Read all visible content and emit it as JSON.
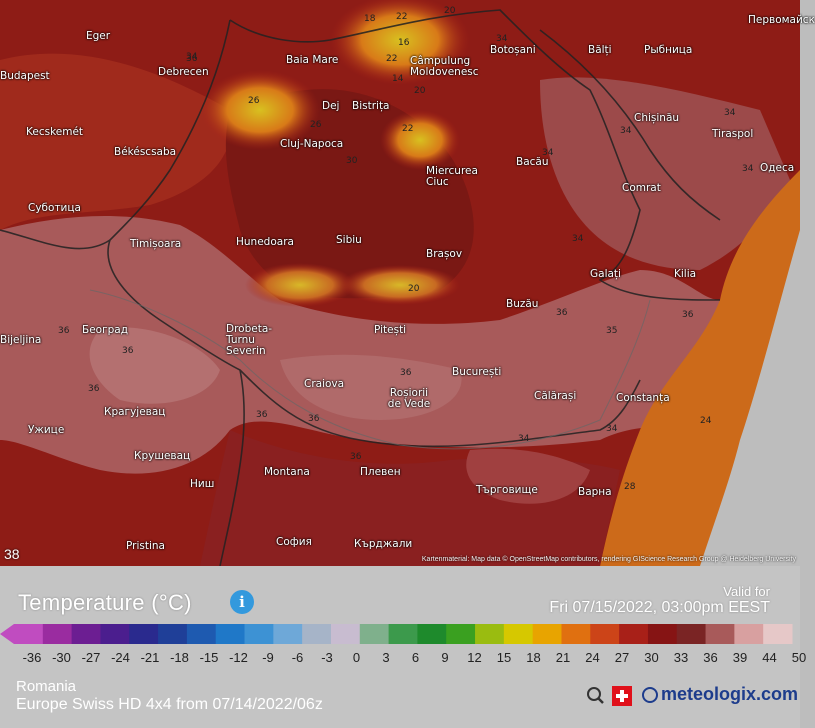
{
  "map": {
    "corner_value": "38",
    "attribution": "Kartenmaterial: Map data © OpenStreetMap contributors, rendering GIScience Research Group @ Heidelberg University",
    "cities": [
      {
        "name": "Eger"
      },
      {
        "name": "Budapest"
      },
      {
        "name": "Debrecen"
      },
      {
        "name": "Baia Mare"
      },
      {
        "name": "Câmpulung Moldovenesc"
      },
      {
        "name": "Botoșani"
      },
      {
        "name": "Bălți"
      },
      {
        "name": "Рыбница"
      },
      {
        "name": "Первомайск"
      },
      {
        "name": "Kecskemét"
      },
      {
        "name": "Dej"
      },
      {
        "name": "Bistrița"
      },
      {
        "name": "Chișinău"
      },
      {
        "name": "Tiraspol"
      },
      {
        "name": "Békéscsaba"
      },
      {
        "name": "Cluj-Napoca"
      },
      {
        "name": "Bacău"
      },
      {
        "name": "Miercurea Ciuc"
      },
      {
        "name": "Comrat"
      },
      {
        "name": "Одеса"
      },
      {
        "name": "Суботица"
      },
      {
        "name": "Timișoara"
      },
      {
        "name": "Hunedoara"
      },
      {
        "name": "Sibiu"
      },
      {
        "name": "Brașov"
      },
      {
        "name": "Galați"
      },
      {
        "name": "Kilia"
      },
      {
        "name": "Београд"
      },
      {
        "name": "Bijeljina"
      },
      {
        "name": "Drobeta-Turnu Severin"
      },
      {
        "name": "Pitești"
      },
      {
        "name": "Buzău"
      },
      {
        "name": "Craiova"
      },
      {
        "name": "București"
      },
      {
        "name": "Roșiorii de Vede"
      },
      {
        "name": "Călărași"
      },
      {
        "name": "Constanța"
      },
      {
        "name": "Крагујевац"
      },
      {
        "name": "Ужице"
      },
      {
        "name": "Крушевац"
      },
      {
        "name": "Ниш"
      },
      {
        "name": "Montana"
      },
      {
        "name": "Плевен"
      },
      {
        "name": "Търговище"
      },
      {
        "name": "Варна"
      },
      {
        "name": "София"
      },
      {
        "name": "Pristina"
      },
      {
        "name": "Кърджали"
      }
    ],
    "temp_labels": [
      {
        "v": "18"
      },
      {
        "v": "22"
      },
      {
        "v": "20"
      },
      {
        "v": "16"
      },
      {
        "v": "22"
      },
      {
        "v": "34"
      },
      {
        "v": "26"
      },
      {
        "v": "26"
      },
      {
        "v": "34"
      },
      {
        "v": "14"
      },
      {
        "v": "20"
      },
      {
        "v": "22"
      },
      {
        "v": "30"
      },
      {
        "v": "34"
      },
      {
        "v": "34"
      },
      {
        "v": "34"
      },
      {
        "v": "36"
      },
      {
        "v": "34"
      },
      {
        "v": "36"
      },
      {
        "v": "36"
      },
      {
        "v": "20"
      },
      {
        "v": "36"
      },
      {
        "v": "36"
      },
      {
        "v": "36"
      },
      {
        "v": "36"
      },
      {
        "v": "36"
      },
      {
        "v": "34"
      },
      {
        "v": "36"
      },
      {
        "v": "24"
      },
      {
        "v": "28"
      },
      {
        "v": "36"
      },
      {
        "v": "34"
      },
      {
        "v": "34"
      },
      {
        "v": "35"
      }
    ]
  },
  "legend": {
    "title": "Temperature (°C)",
    "valid_for_label": "Valid for",
    "valid_datetime": "Fri 07/15/2022, 03:00pm EEST",
    "ticks": [
      "-36",
      "-30",
      "-27",
      "-24",
      "-21",
      "-18",
      "-15",
      "-12",
      "-9",
      "-6",
      "-3",
      "0",
      "3",
      "6",
      "9",
      "12",
      "15",
      "18",
      "21",
      "24",
      "27",
      "30",
      "33",
      "36",
      "39",
      "44",
      "50"
    ],
    "colors": [
      "#c04cc0",
      "#9a2ca0",
      "#6c1e92",
      "#4b1e8e",
      "#2a2a8e",
      "#1f3f98",
      "#1e5ab0",
      "#1f78c8",
      "#3d92d4",
      "#6ea8d8",
      "#a6b4c8",
      "#c8bcd0",
      "#7fb08c",
      "#3c9a4c",
      "#1e8a2c",
      "#3aa020",
      "#9abc10",
      "#d6c800",
      "#e8a400",
      "#e07010",
      "#cc4418",
      "#a82018",
      "#861414",
      "#7a2424",
      "#a85a5a",
      "#d8a0a0",
      "#e6c8c8"
    ],
    "region": "Romania",
    "model": "Europe Swiss HD 4x4 from 07/14/2022/06z",
    "brand": "meteologix.com",
    "info_icon": "info-icon",
    "brand_icon": "meteologix-globe-icon",
    "zoom_icon": "magnifier-icon",
    "swiss_flag_icon": "swiss-flag-icon"
  }
}
